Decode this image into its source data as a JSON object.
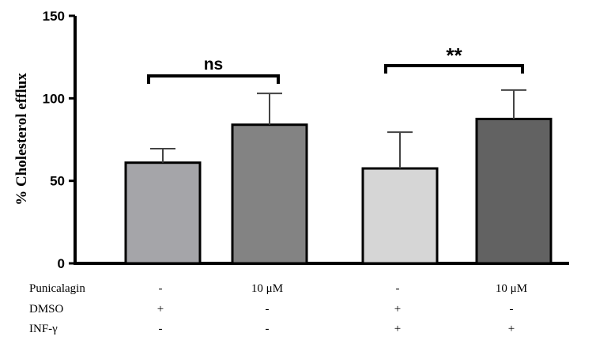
{
  "chart_data": {
    "type": "bar",
    "ylabel": "% Cholesterol efflux",
    "ylim": [
      0,
      150
    ],
    "yticks": [
      0,
      50,
      100,
      150
    ],
    "values": [
      61,
      84,
      57.5,
      87.5
    ],
    "errors": [
      8.5,
      19,
      22,
      17.5
    ],
    "colors": [
      "#a5a5a9",
      "#838383",
      "#d6d6d6",
      "#626262"
    ],
    "comparisons": [
      {
        "pair": [
          0,
          1
        ],
        "label": "ns"
      },
      {
        "pair": [
          2,
          3
        ],
        "label": "**"
      }
    ],
    "conditions": [
      {
        "name": "Punicalagin",
        "values": [
          "-",
          "10 μM",
          "-",
          "10 μM"
        ]
      },
      {
        "name": "DMSO",
        "values": [
          "+",
          "-",
          "+",
          "-"
        ]
      },
      {
        "name": "INF-γ",
        "values": [
          "-",
          "-",
          "+",
          "+"
        ]
      }
    ]
  }
}
